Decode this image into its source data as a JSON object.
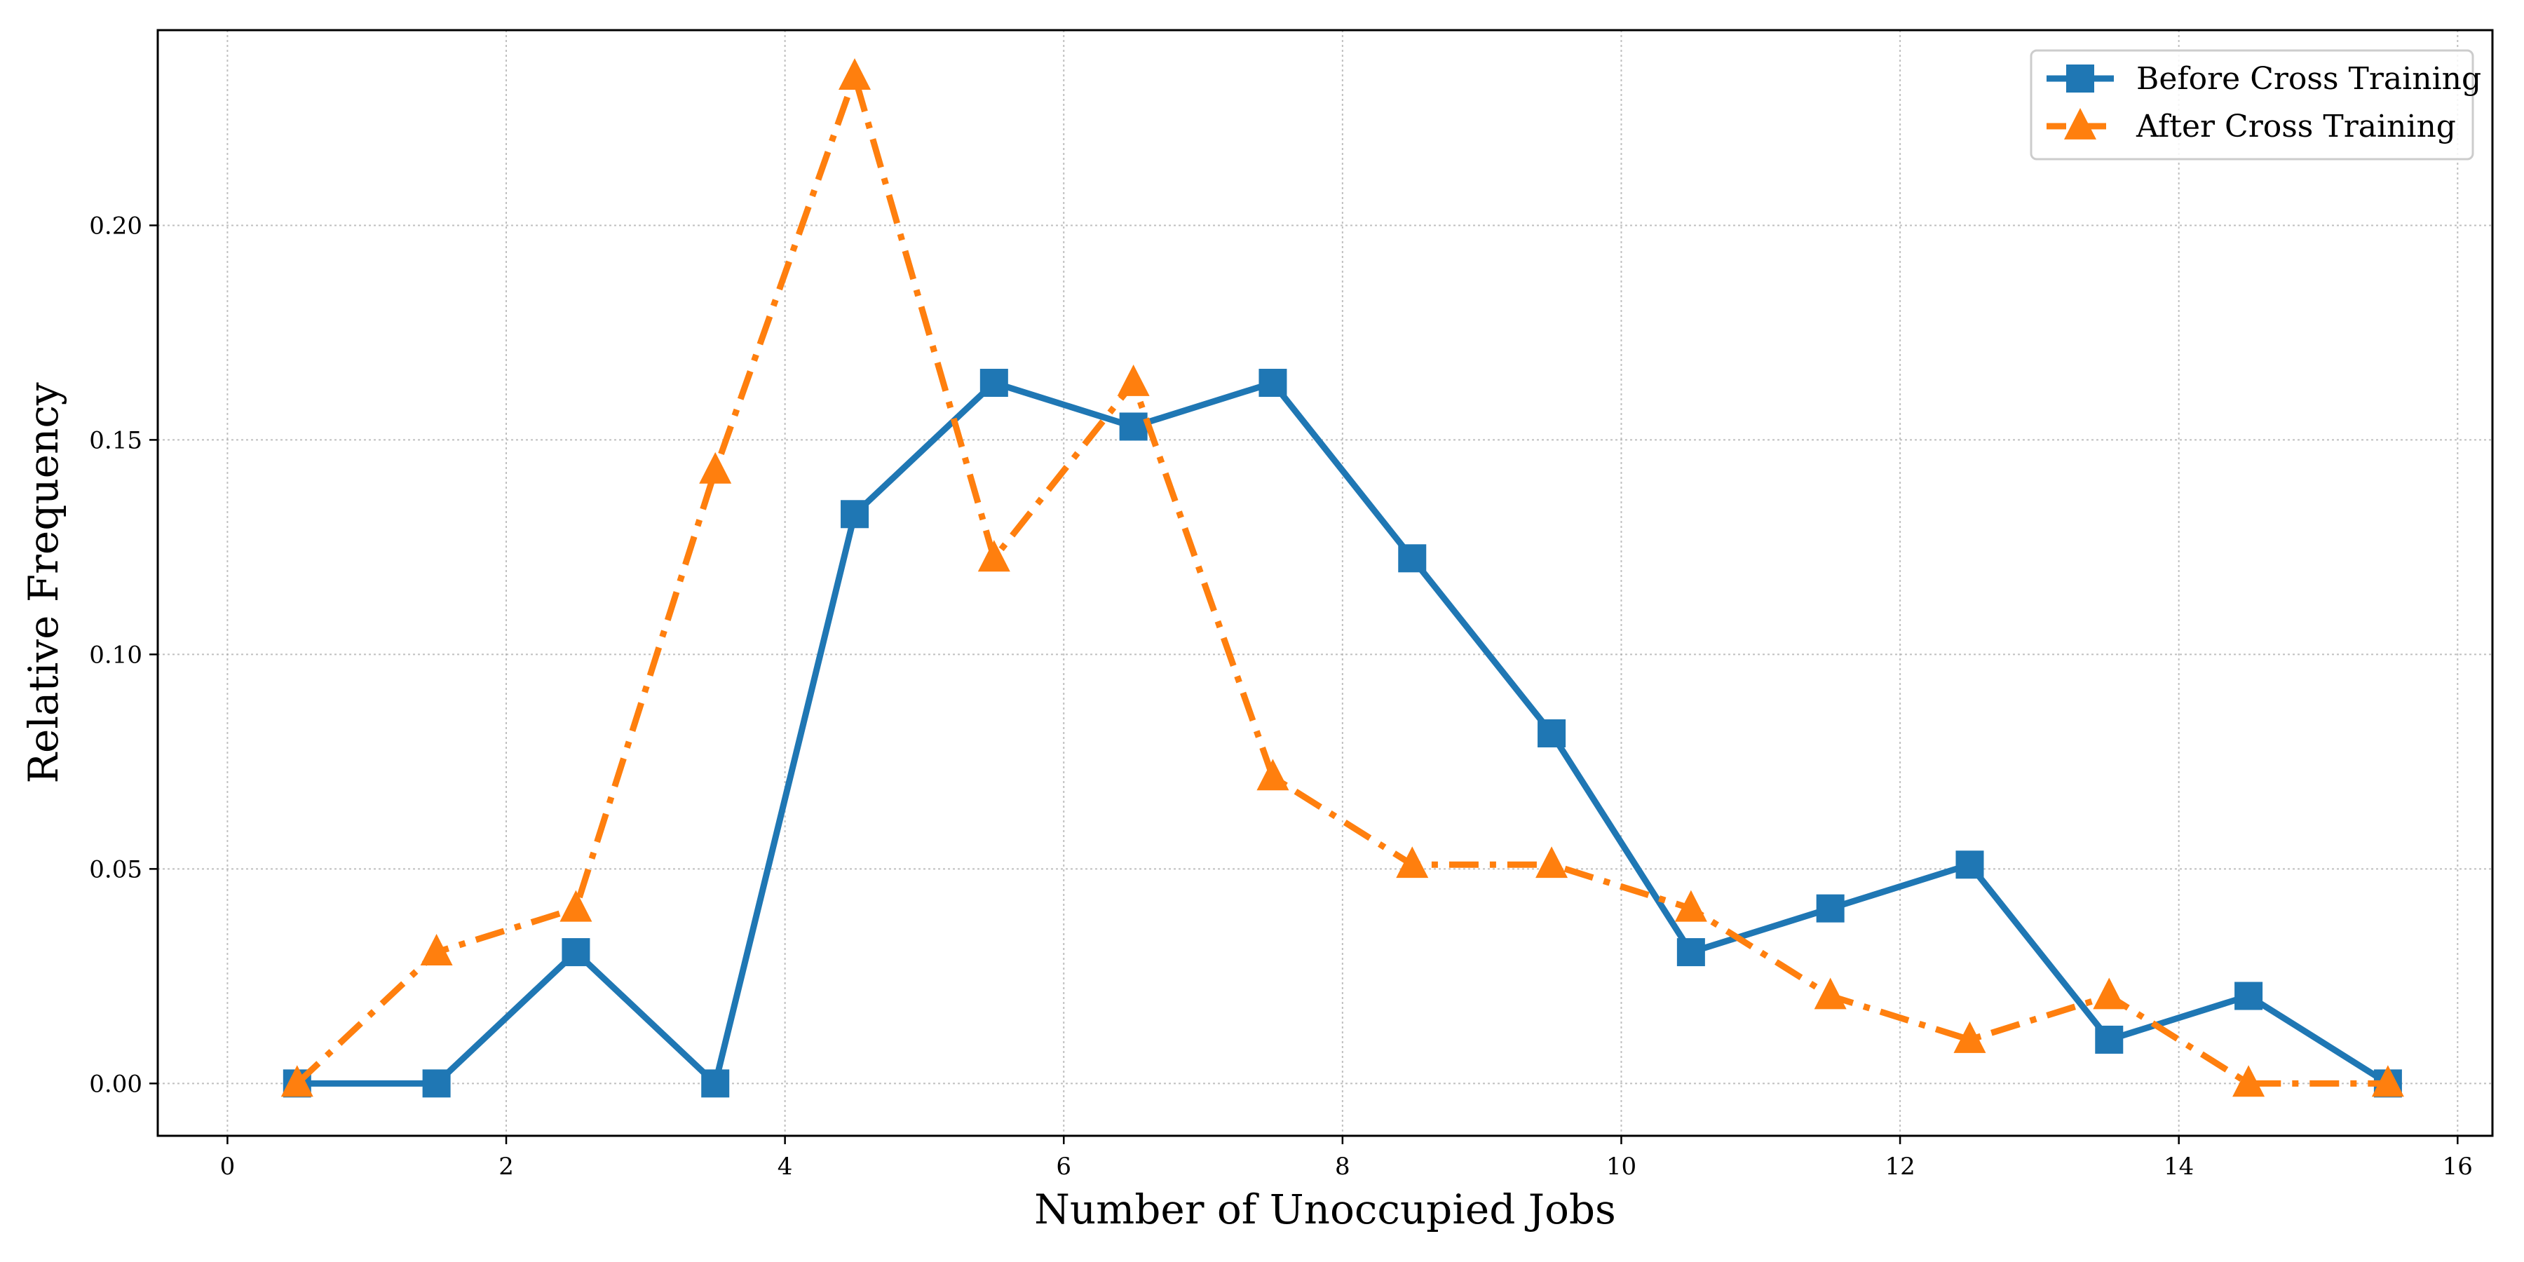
{
  "chart_data": {
    "type": "line",
    "title": "",
    "xlabel": "Number of Unoccupied Jobs",
    "ylabel": "Relative Frequency",
    "xlim": [
      -0.5,
      16.25
    ],
    "ylim": [
      -0.0122,
      0.2455
    ],
    "x_ticks": [
      0,
      2,
      4,
      6,
      8,
      10,
      12,
      14,
      16
    ],
    "y_ticks": [
      0.0,
      0.05,
      0.1,
      0.15,
      0.2
    ],
    "x_tick_labels": [
      "0",
      "2",
      "4",
      "6",
      "8",
      "10",
      "12",
      "14",
      "16"
    ],
    "y_tick_labels": [
      "0.00",
      "0.05",
      "0.10",
      "0.15",
      "0.20"
    ],
    "grid": true,
    "legend_position": "top-right",
    "x": [
      0.5,
      1.5,
      2.5,
      3.5,
      4.5,
      5.5,
      6.5,
      7.5,
      8.5,
      9.5,
      10.5,
      11.5,
      12.5,
      13.5,
      14.5,
      15.5
    ],
    "series": [
      {
        "name": "Before Cross Training",
        "color": "#1f77b4",
        "marker": "square",
        "line_style": "solid",
        "values": [
          0.0,
          0.0,
          0.0306,
          0.0,
          0.1327,
          0.1633,
          0.1531,
          0.1633,
          0.1224,
          0.0816,
          0.0306,
          0.0408,
          0.051,
          0.0102,
          0.0204,
          0.0
        ]
      },
      {
        "name": "After Cross Training",
        "color": "#ff7f0e",
        "marker": "triangle",
        "line_style": "dashdot",
        "values": [
          0.0,
          0.0306,
          0.0408,
          0.1429,
          0.2347,
          0.1224,
          0.1633,
          0.0714,
          0.051,
          0.051,
          0.0408,
          0.0204,
          0.0102,
          0.0204,
          0.0,
          0.0
        ]
      }
    ]
  }
}
